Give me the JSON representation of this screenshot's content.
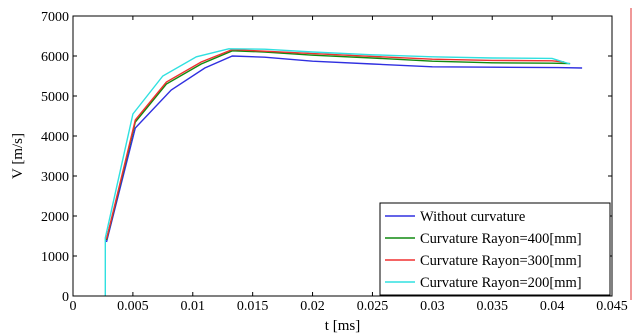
{
  "chart_data": {
    "type": "line",
    "xlabel": "t [ms]",
    "ylabel": "V [m/s]",
    "xlim": [
      0,
      0.045
    ],
    "ylim": [
      0,
      7000
    ],
    "x_ticks": [
      0,
      0.005,
      0.01,
      0.015,
      0.02,
      0.025,
      0.03,
      0.035,
      0.04,
      0.045
    ],
    "x_tick_labels": [
      "0",
      "0.005",
      "0.01",
      "0.015",
      "0.02",
      "0.025",
      "0.03",
      "0.035",
      "0.04",
      "0.045"
    ],
    "y_ticks": [
      0,
      1000,
      2000,
      3000,
      4000,
      5000,
      6000,
      7000
    ],
    "y_tick_labels": [
      "0",
      "1000",
      "2000",
      "3000",
      "4000",
      "5000",
      "6000",
      "7000"
    ],
    "grid": false,
    "legend_position": "bottom-right",
    "series": [
      {
        "name": "Without curvature",
        "color": "#3030e0",
        "points": [
          [
            0.0028,
            1350
          ],
          [
            0.0052,
            4200
          ],
          [
            0.0082,
            5150
          ],
          [
            0.011,
            5700
          ],
          [
            0.0133,
            6000
          ],
          [
            0.016,
            5970
          ],
          [
            0.02,
            5870
          ],
          [
            0.025,
            5800
          ],
          [
            0.03,
            5730
          ],
          [
            0.035,
            5720
          ],
          [
            0.0405,
            5710
          ],
          [
            0.0425,
            5700
          ]
        ]
      },
      {
        "name": "Curvature Rayon=400[mm]",
        "color": "#108a10",
        "points": [
          [
            0.0028,
            1400
          ],
          [
            0.0052,
            4350
          ],
          [
            0.0078,
            5300
          ],
          [
            0.0107,
            5800
          ],
          [
            0.0133,
            6130
          ],
          [
            0.016,
            6100
          ],
          [
            0.02,
            6020
          ],
          [
            0.025,
            5950
          ],
          [
            0.03,
            5870
          ],
          [
            0.035,
            5830
          ],
          [
            0.04,
            5820
          ],
          [
            0.0415,
            5810
          ]
        ]
      },
      {
        "name": "Curvature Rayon=300[mm]",
        "color": "#f03030",
        "points": [
          [
            0.0028,
            1420
          ],
          [
            0.0052,
            4400
          ],
          [
            0.0078,
            5350
          ],
          [
            0.0107,
            5850
          ],
          [
            0.0133,
            6160
          ],
          [
            0.016,
            6120
          ],
          [
            0.02,
            6060
          ],
          [
            0.025,
            5990
          ],
          [
            0.03,
            5920
          ],
          [
            0.035,
            5890
          ],
          [
            0.04,
            5880
          ],
          [
            0.041,
            5850
          ]
        ]
      },
      {
        "name": "Curvature Rayon=200[mm]",
        "color": "#30e0e0",
        "points": [
          [
            0.0027,
            0
          ],
          [
            0.0027,
            1450
          ],
          [
            0.005,
            4550
          ],
          [
            0.0075,
            5500
          ],
          [
            0.0103,
            5980
          ],
          [
            0.013,
            6180
          ],
          [
            0.016,
            6170
          ],
          [
            0.02,
            6100
          ],
          [
            0.025,
            6030
          ],
          [
            0.03,
            5980
          ],
          [
            0.035,
            5950
          ],
          [
            0.04,
            5940
          ],
          [
            0.0415,
            5800
          ]
        ]
      }
    ]
  }
}
